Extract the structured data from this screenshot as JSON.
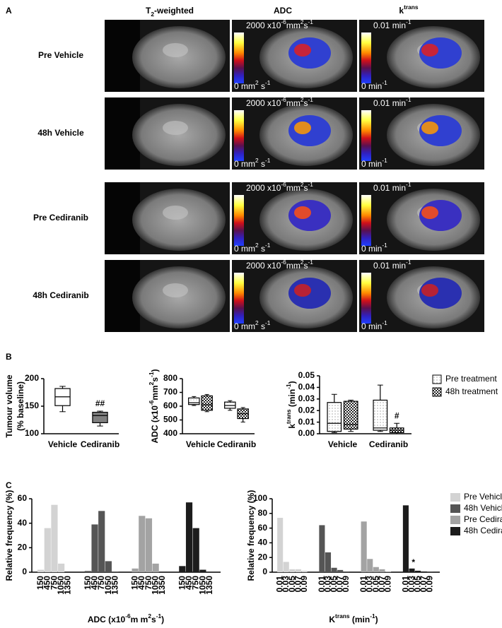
{
  "panel_a": {
    "label": "A",
    "columns": {
      "t2": [
        "T",
        "2",
        "-weighted"
      ],
      "adc": "ADC",
      "ktrans": [
        "k",
        "trans"
      ]
    },
    "rows": [
      "Pre Vehicle",
      "48h Vehicle",
      "Pre Cediranib",
      "48h Cediranib"
    ],
    "adc_scale": {
      "top": [
        "2000 x10",
        "-6",
        "mm",
        "2",
        "s",
        "-1"
      ],
      "bottom": [
        "0 mm",
        "2",
        " s",
        "-1"
      ]
    },
    "ktrans_scale": {
      "top": [
        "0.01 min",
        "-1"
      ],
      "bottom": [
        "0 min",
        "-1"
      ]
    }
  },
  "panel_b_label": "B",
  "panel_c_label": "C",
  "chart_data": [
    {
      "type": "box",
      "ylabel_lines": [
        "Tumour volume",
        "(% baseline)"
      ],
      "categories": [
        "Vehicle",
        "Cediranib"
      ],
      "ylim": [
        100,
        200
      ],
      "yticks": [
        100,
        150,
        200
      ],
      "series": [
        {
          "colors": [
            "#ffffff",
            "#7f7f7f"
          ],
          "annotations": [
            null,
            "##"
          ],
          "stats": [
            {
              "min": 140,
              "q1": 151,
              "median": 167,
              "q3": 182,
              "max": 186
            },
            {
              "min": 114,
              "q1": 120,
              "median": 133,
              "q3": 139,
              "max": 141
            }
          ]
        }
      ]
    },
    {
      "type": "box",
      "ylabel": [
        "ADC (x10",
        "-6",
        "mm",
        "2",
        "s",
        "-1",
        ")"
      ],
      "categories": [
        "Vehicle",
        "Cediranib"
      ],
      "ylim": [
        400,
        800
      ],
      "yticks": [
        400,
        500,
        600,
        700,
        800
      ],
      "series": [
        {
          "pattern": "dots",
          "stats": [
            {
              "min": 605,
              "q1": 612,
              "median": 625,
              "q3": 660,
              "max": 670
            },
            {
              "min": 570,
              "q1": 585,
              "median": 605,
              "q3": 630,
              "max": 640
            }
          ]
        },
        {
          "pattern": "checker",
          "stats": [
            {
              "min": 560,
              "q1": 570,
              "median": 610,
              "q3": 675,
              "max": 685
            },
            {
              "min": 485,
              "q1": 510,
              "median": 545,
              "q3": 580,
              "max": 590
            }
          ]
        }
      ]
    },
    {
      "type": "box",
      "ylabel": [
        "k",
        "trans",
        " (min",
        "-1",
        ")"
      ],
      "categories": [
        "Vehicle",
        "Cediranib"
      ],
      "ylim": [
        0,
        0.05
      ],
      "yticks": [
        {
          "value": 0,
          "label": "0.00"
        },
        0.01,
        0.02,
        0.03,
        0.04,
        0.05
      ],
      "series": [
        {
          "name": "Pre treatment",
          "pattern": "dots",
          "stats": [
            {
              "min": 0.001,
              "q1": 0.002,
              "median": 0.009,
              "q3": 0.027,
              "max": 0.034
            },
            {
              "min": 0.002,
              "q1": 0.003,
              "median": 0.005,
              "q3": 0.029,
              "max": 0.042
            }
          ]
        },
        {
          "name": "48h treatment",
          "pattern": "checker",
          "annotations": [
            null,
            "#"
          ],
          "stats": [
            {
              "min": 0.002,
              "q1": 0.004,
              "median": 0.008,
              "q3": 0.028,
              "max": 0.029
            },
            {
              "min": 0,
              "q1": 0.001,
              "median": 0.003,
              "q3": 0.005,
              "max": 0.009
            }
          ]
        }
      ]
    },
    {
      "type": "bar",
      "ylabel": "Relative frequency (%)",
      "xlabel": [
        "ADC (x10",
        "-6",
        "m m",
        "2",
        "s",
        "-1",
        ")"
      ],
      "categories": [
        "150",
        "450",
        "750",
        "1050",
        "1350"
      ],
      "ylim": [
        0,
        60
      ],
      "yticks": [
        0,
        20,
        40,
        60
      ],
      "series": [
        {
          "color": "#d3d3d3",
          "values": [
            2,
            36,
            55,
            7,
            0
          ]
        },
        {
          "color": "#555555",
          "values": [
            1,
            39,
            50,
            9,
            0.5
          ]
        },
        {
          "color": "#a3a3a3",
          "values": [
            3,
            46,
            44,
            7,
            0
          ]
        },
        {
          "color": "#1c1c1c",
          "values": [
            5,
            57,
            36,
            2,
            0
          ]
        }
      ]
    },
    {
      "type": "bar",
      "ylabel": "Relative frequency (%)",
      "xlabel": [
        "K",
        "trans",
        " (min",
        "-1",
        ")"
      ],
      "categories": [
        "0.01",
        "0.03",
        "0.05",
        "0.07",
        "0.09"
      ],
      "ylim": [
        0,
        100
      ],
      "yticks": [
        0,
        20,
        40,
        60,
        80,
        100
      ],
      "series": [
        {
          "name": "Pre Vehicle",
          "color": "#d3d3d3",
          "values": [
            74,
            14,
            4,
            4,
            2
          ]
        },
        {
          "name": "48h Vehicle",
          "color": "#555555",
          "values": [
            64,
            27,
            6,
            3,
            1
          ]
        },
        {
          "name": "Pre Cediranib",
          "color": "#a3a3a3",
          "values": [
            69,
            18,
            7,
            4,
            1
          ]
        },
        {
          "name": "48h Cediranib",
          "color": "#1c1c1c",
          "values": [
            91,
            5,
            2,
            1,
            0.5
          ],
          "annotations": [
            null,
            "*",
            null,
            null,
            null
          ]
        }
      ]
    }
  ]
}
